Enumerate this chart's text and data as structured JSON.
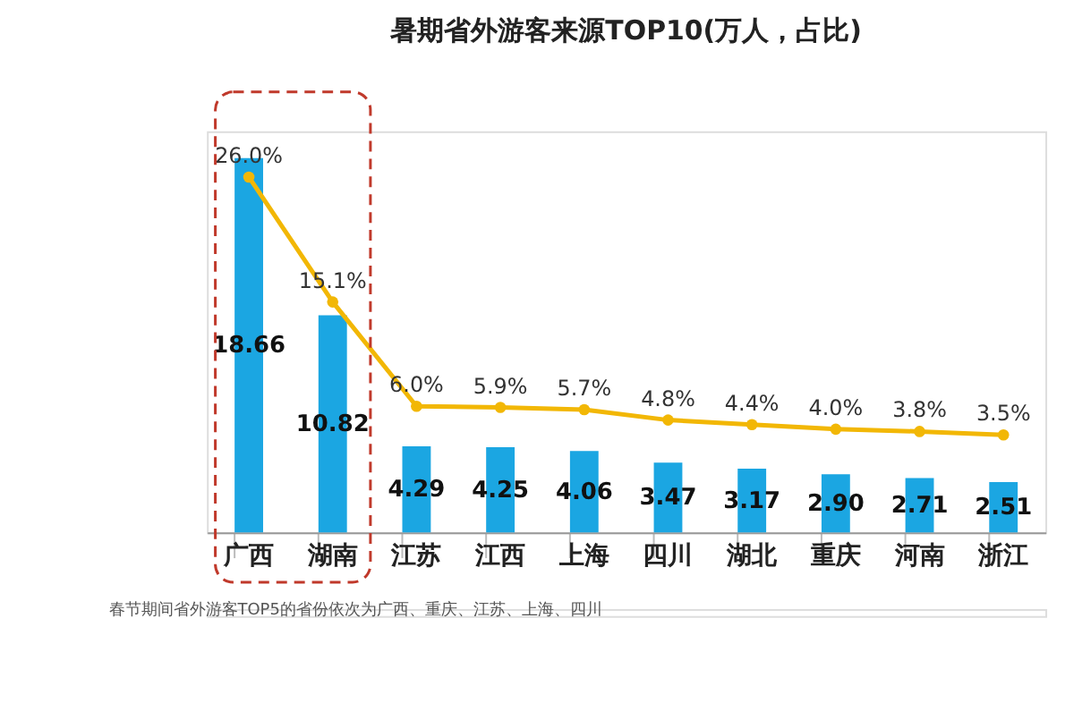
{
  "chart_data": {
    "type": "bar",
    "title": "暑期省外游客来源TOP10(万人，占比)",
    "categories": [
      "广西",
      "湖南",
      "江苏",
      "江西",
      "上海",
      "四川",
      "湖北",
      "重庆",
      "河南",
      "浙江"
    ],
    "series": [
      {
        "color": "#1ba6e2",
        "values": [
          18.66,
          10.82,
          4.29,
          4.25,
          4.06,
          3.47,
          3.17,
          2.9,
          2.71,
          2.51
        ],
        "value_labels": [
          "18.66",
          "10.82",
          "4.29",
          "4.25",
          "4.06",
          "3.47",
          "3.17",
          "2.90",
          "2.71",
          "2.51"
        ]
      },
      {
        "type": "line",
        "axis": "y2",
        "color": "#f2b705",
        "marker": "circle",
        "values": [
          26.0,
          15.1,
          6.0,
          5.9,
          5.7,
          4.8,
          4.4,
          4.0,
          3.8,
          3.5
        ],
        "value_labels": [
          "26.0%",
          "15.1%",
          "6.0%",
          "5.9%",
          "5.7%",
          "4.8%",
          "4.4%",
          "4.0%",
          "3.8%",
          "3.5%"
        ]
      }
    ],
    "annotations": [
      "春节期间省外游客TOP5的省份依次为广西、重庆、江苏、上海、四川"
    ],
    "grid": false
  }
}
